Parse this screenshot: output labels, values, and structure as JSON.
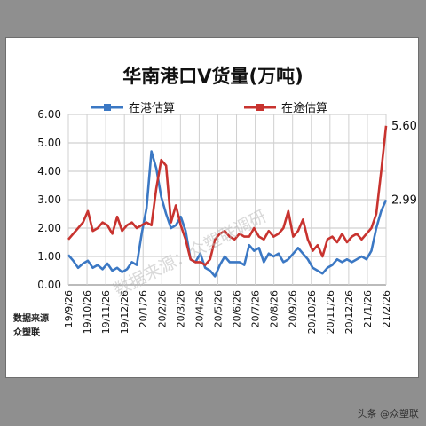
{
  "credit": "头条 @众塑联",
  "watermark": "数据来源：众塑联调研",
  "source_lines": [
    "数据来源",
    "众塑联"
  ],
  "chart_data": {
    "type": "line",
    "title": "华南港口V货量(万吨)",
    "y_ticks": [
      "0.00",
      "1.00",
      "2.00",
      "3.00",
      "4.00",
      "5.00",
      "6.00"
    ],
    "ylim": [
      0,
      6
    ],
    "x_ticks": [
      "19/9/26",
      "19/10/26",
      "19/11/26",
      "19/12/26",
      "20/1/26",
      "20/2/26",
      "20/3/26",
      "20/4/26",
      "20/5/26",
      "20/6/26",
      "20/7/26",
      "20/8/26",
      "20/9/26",
      "20/10/26",
      "20/11/26",
      "20/12/26",
      "21/1/26",
      "21/2/26"
    ],
    "grid": true,
    "legend_position": "top",
    "series": [
      {
        "name": "在港估算",
        "color": "#3b78c4",
        "end_label": "2.99",
        "values": [
          1.05,
          0.85,
          0.6,
          0.75,
          0.85,
          0.6,
          0.7,
          0.55,
          0.75,
          0.5,
          0.6,
          0.45,
          0.55,
          0.8,
          0.7,
          1.8,
          2.7,
          4.7,
          4.1,
          3.1,
          2.5,
          2.0,
          2.1,
          2.4,
          1.9,
          0.9,
          0.8,
          1.1,
          0.6,
          0.5,
          0.3,
          0.7,
          1.0,
          0.8,
          0.8,
          0.8,
          0.7,
          1.4,
          1.2,
          1.3,
          0.8,
          1.1,
          1.0,
          1.1,
          0.8,
          0.9,
          1.1,
          1.3,
          1.1,
          0.9,
          0.6,
          0.5,
          0.4,
          0.6,
          0.7,
          0.9,
          0.8,
          0.9,
          0.8,
          0.9,
          1.0,
          0.9,
          1.2,
          2.0,
          2.6,
          2.99
        ]
      },
      {
        "name": "在途估算",
        "color": "#c8332f",
        "end_label": "5.60",
        "values": [
          1.6,
          1.8,
          2.0,
          2.2,
          2.6,
          1.9,
          2.0,
          2.2,
          2.1,
          1.8,
          2.4,
          1.9,
          2.1,
          2.2,
          2.0,
          2.1,
          2.2,
          2.1,
          3.4,
          4.4,
          4.2,
          2.2,
          2.8,
          2.1,
          1.6,
          0.9,
          0.8,
          0.8,
          0.7,
          0.9,
          1.6,
          1.8,
          1.9,
          1.7,
          1.6,
          1.8,
          1.7,
          1.7,
          2.0,
          1.7,
          1.6,
          1.9,
          1.7,
          1.8,
          2.0,
          2.6,
          1.7,
          1.9,
          2.3,
          1.6,
          1.2,
          1.4,
          1.0,
          1.6,
          1.7,
          1.5,
          1.8,
          1.5,
          1.7,
          1.8,
          1.6,
          1.8,
          2.0,
          2.5,
          4.0,
          5.6
        ]
      }
    ]
  }
}
